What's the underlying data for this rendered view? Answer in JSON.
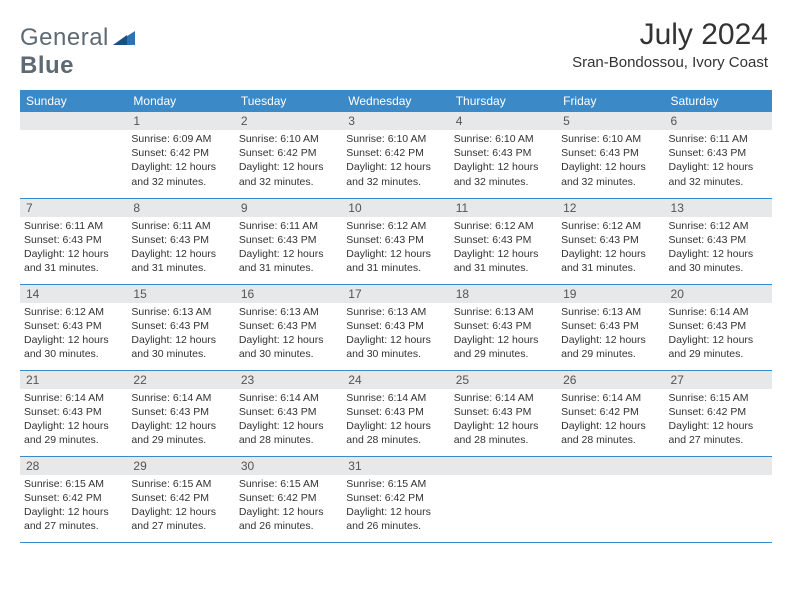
{
  "brand": {
    "part1": "General",
    "part2": "Blue"
  },
  "title": "July 2024",
  "location": "Sran-Bondossou, Ivory Coast",
  "colors": {
    "header_bg": "#3b89c7",
    "header_text": "#ffffff",
    "daynum_bg": "#e6e8ea",
    "text": "#333333",
    "logo_gray": "#5d6a74",
    "logo_blue": "#2d72b5"
  },
  "weekdays": [
    "Sunday",
    "Monday",
    "Tuesday",
    "Wednesday",
    "Thursday",
    "Friday",
    "Saturday"
  ],
  "start_offset": 1,
  "days": [
    {
      "n": 1,
      "sunrise": "6:09 AM",
      "sunset": "6:42 PM",
      "daylight": "12 hours and 32 minutes."
    },
    {
      "n": 2,
      "sunrise": "6:10 AM",
      "sunset": "6:42 PM",
      "daylight": "12 hours and 32 minutes."
    },
    {
      "n": 3,
      "sunrise": "6:10 AM",
      "sunset": "6:42 PM",
      "daylight": "12 hours and 32 minutes."
    },
    {
      "n": 4,
      "sunrise": "6:10 AM",
      "sunset": "6:43 PM",
      "daylight": "12 hours and 32 minutes."
    },
    {
      "n": 5,
      "sunrise": "6:10 AM",
      "sunset": "6:43 PM",
      "daylight": "12 hours and 32 minutes."
    },
    {
      "n": 6,
      "sunrise": "6:11 AM",
      "sunset": "6:43 PM",
      "daylight": "12 hours and 32 minutes."
    },
    {
      "n": 7,
      "sunrise": "6:11 AM",
      "sunset": "6:43 PM",
      "daylight": "12 hours and 31 minutes."
    },
    {
      "n": 8,
      "sunrise": "6:11 AM",
      "sunset": "6:43 PM",
      "daylight": "12 hours and 31 minutes."
    },
    {
      "n": 9,
      "sunrise": "6:11 AM",
      "sunset": "6:43 PM",
      "daylight": "12 hours and 31 minutes."
    },
    {
      "n": 10,
      "sunrise": "6:12 AM",
      "sunset": "6:43 PM",
      "daylight": "12 hours and 31 minutes."
    },
    {
      "n": 11,
      "sunrise": "6:12 AM",
      "sunset": "6:43 PM",
      "daylight": "12 hours and 31 minutes."
    },
    {
      "n": 12,
      "sunrise": "6:12 AM",
      "sunset": "6:43 PM",
      "daylight": "12 hours and 31 minutes."
    },
    {
      "n": 13,
      "sunrise": "6:12 AM",
      "sunset": "6:43 PM",
      "daylight": "12 hours and 30 minutes."
    },
    {
      "n": 14,
      "sunrise": "6:12 AM",
      "sunset": "6:43 PM",
      "daylight": "12 hours and 30 minutes."
    },
    {
      "n": 15,
      "sunrise": "6:13 AM",
      "sunset": "6:43 PM",
      "daylight": "12 hours and 30 minutes."
    },
    {
      "n": 16,
      "sunrise": "6:13 AM",
      "sunset": "6:43 PM",
      "daylight": "12 hours and 30 minutes."
    },
    {
      "n": 17,
      "sunrise": "6:13 AM",
      "sunset": "6:43 PM",
      "daylight": "12 hours and 30 minutes."
    },
    {
      "n": 18,
      "sunrise": "6:13 AM",
      "sunset": "6:43 PM",
      "daylight": "12 hours and 29 minutes."
    },
    {
      "n": 19,
      "sunrise": "6:13 AM",
      "sunset": "6:43 PM",
      "daylight": "12 hours and 29 minutes."
    },
    {
      "n": 20,
      "sunrise": "6:14 AM",
      "sunset": "6:43 PM",
      "daylight": "12 hours and 29 minutes."
    },
    {
      "n": 21,
      "sunrise": "6:14 AM",
      "sunset": "6:43 PM",
      "daylight": "12 hours and 29 minutes."
    },
    {
      "n": 22,
      "sunrise": "6:14 AM",
      "sunset": "6:43 PM",
      "daylight": "12 hours and 29 minutes."
    },
    {
      "n": 23,
      "sunrise": "6:14 AM",
      "sunset": "6:43 PM",
      "daylight": "12 hours and 28 minutes."
    },
    {
      "n": 24,
      "sunrise": "6:14 AM",
      "sunset": "6:43 PM",
      "daylight": "12 hours and 28 minutes."
    },
    {
      "n": 25,
      "sunrise": "6:14 AM",
      "sunset": "6:43 PM",
      "daylight": "12 hours and 28 minutes."
    },
    {
      "n": 26,
      "sunrise": "6:14 AM",
      "sunset": "6:42 PM",
      "daylight": "12 hours and 28 minutes."
    },
    {
      "n": 27,
      "sunrise": "6:15 AM",
      "sunset": "6:42 PM",
      "daylight": "12 hours and 27 minutes."
    },
    {
      "n": 28,
      "sunrise": "6:15 AM",
      "sunset": "6:42 PM",
      "daylight": "12 hours and 27 minutes."
    },
    {
      "n": 29,
      "sunrise": "6:15 AM",
      "sunset": "6:42 PM",
      "daylight": "12 hours and 27 minutes."
    },
    {
      "n": 30,
      "sunrise": "6:15 AM",
      "sunset": "6:42 PM",
      "daylight": "12 hours and 26 minutes."
    },
    {
      "n": 31,
      "sunrise": "6:15 AM",
      "sunset": "6:42 PM",
      "daylight": "12 hours and 26 minutes."
    }
  ],
  "labels": {
    "sunrise": "Sunrise:",
    "sunset": "Sunset:",
    "daylight": "Daylight:"
  }
}
